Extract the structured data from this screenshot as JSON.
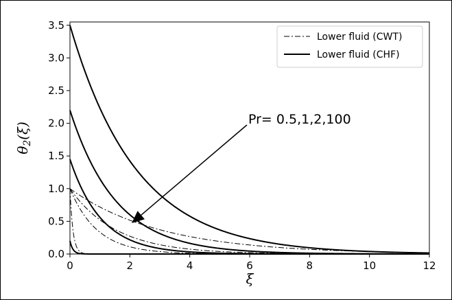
{
  "chart_data": {
    "type": "line",
    "title": "",
    "xlabel": "ξ",
    "ylabel": "θ2(ξ)",
    "ylabel_base": "θ",
    "ylabel_sub": "2",
    "ylabel_arg": "(ξ)",
    "xlim": [
      0,
      12
    ],
    "ylim": [
      0,
      3.55
    ],
    "xticks": [
      0,
      2,
      4,
      6,
      8,
      10,
      12
    ],
    "yticks": [
      0.0,
      0.5,
      1.0,
      1.5,
      2.0,
      2.5,
      3.0,
      3.5
    ],
    "legend": {
      "placement": "top-right",
      "entries": [
        {
          "label": "Lower fluid (CWT)",
          "style": "dash-dot"
        },
        {
          "label": "Lower fluid (CHF)",
          "style": "solid"
        }
      ]
    },
    "annotation": {
      "text": "Pr= 0.5,1,2,100",
      "arrow_points_to": {
        "x": 2.2,
        "y": 0.62
      }
    },
    "series": [
      {
        "group": "CWT",
        "style": "dash-dot",
        "x0": 1.0,
        "decay": 0.33
      },
      {
        "group": "CWT",
        "style": "dash-dot",
        "x0": 1.0,
        "decay": 0.65
      },
      {
        "group": "CWT",
        "style": "dash-dot",
        "x0": 1.0,
        "decay": 1.1
      },
      {
        "group": "CWT",
        "style": "dash-dot",
        "x0": 1.0,
        "decay": 10.0
      },
      {
        "group": "CHF",
        "style": "solid",
        "x0": 3.5,
        "decay": 0.45
      },
      {
        "group": "CHF",
        "style": "solid",
        "x0": 2.2,
        "decay": 0.65
      },
      {
        "group": "CHF",
        "style": "solid",
        "x0": 1.45,
        "decay": 0.95
      },
      {
        "group": "CHF",
        "style": "solid",
        "x0": 0.2,
        "decay": 10.0
      }
    ]
  }
}
